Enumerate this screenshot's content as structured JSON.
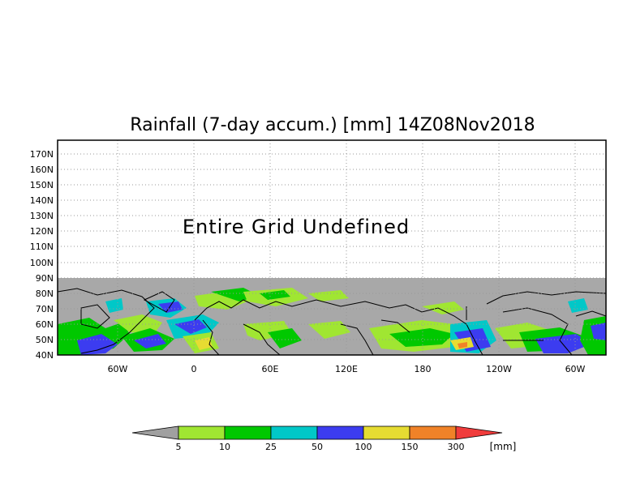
{
  "title": "Rainfall (7-day accum.) [mm] 14Z08Nov2018",
  "overlay_message": "Entire Grid Undefined",
  "map": {
    "lat_ticks": [
      "170N",
      "160N",
      "150N",
      "140N",
      "130N",
      "120N",
      "110N",
      "100N",
      "90N",
      "80N",
      "70N",
      "60N",
      "50N",
      "40N"
    ],
    "lon_ticks": [
      "60W",
      "0",
      "60E",
      "120E",
      "180",
      "120W",
      "60W"
    ],
    "colors": {
      "background": "#ffffff",
      "land_undefined": "#a8a8a8",
      "coastline": "#000000",
      "gridline": "#999999"
    }
  },
  "legend": {
    "labels": [
      "5",
      "10",
      "25",
      "50",
      "100",
      "150",
      "300"
    ],
    "unit": "[mm]",
    "colors": [
      "#a0a0a0",
      "#a0e632",
      "#00c800",
      "#00c8c8",
      "#3c3cf0",
      "#e6dc32",
      "#f08228",
      "#f03c3c"
    ]
  }
}
